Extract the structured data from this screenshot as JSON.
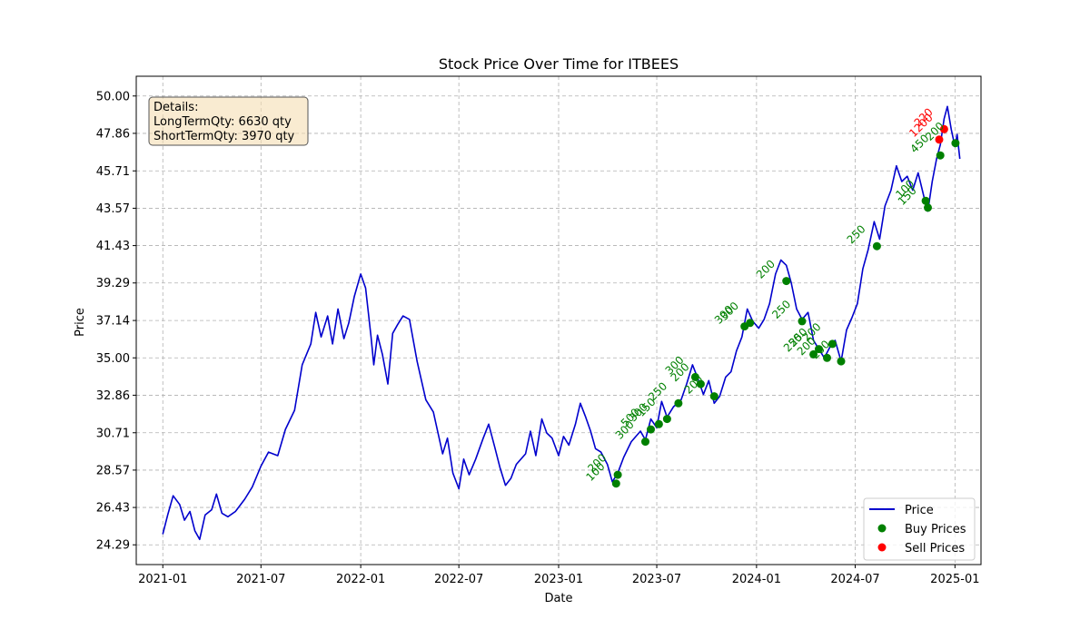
{
  "chart_data": {
    "type": "line",
    "title": "Stock Price Over Time for ITBEES",
    "xlabel": "Date",
    "ylabel": "Price",
    "ylim": [
      24.29,
      50.0
    ],
    "xlim": [
      "2020-11-13",
      "2025-02-18"
    ],
    "grid": true,
    "legend_placement": "lower-right",
    "x_ticks": [
      "2021-01",
      "2021-07",
      "2022-01",
      "2022-07",
      "2023-01",
      "2023-07",
      "2024-01",
      "2024-07",
      "2025-01"
    ],
    "y_ticks": [
      "24.29",
      "26.43",
      "28.57",
      "30.71",
      "32.86",
      "35.00",
      "37.14",
      "39.29",
      "41.43",
      "43.57",
      "45.71",
      "47.86",
      "50.00"
    ],
    "colors": {
      "price": "#0000cd",
      "buy": "#008000",
      "sell": "#ff0000"
    },
    "details_box": {
      "heading": "Details:",
      "long_term": "LongTermQty: 6630 qty",
      "short_term": "ShortTermQty: 3970 qty"
    },
    "series": [
      {
        "name": "Price",
        "points": [
          [
            "2021-01-01",
            24.9
          ],
          [
            "2021-01-10",
            26.0
          ],
          [
            "2021-01-20",
            27.1
          ],
          [
            "2021-02-01",
            26.6
          ],
          [
            "2021-02-10",
            25.7
          ],
          [
            "2021-02-20",
            26.2
          ],
          [
            "2021-03-01",
            25.1
          ],
          [
            "2021-03-10",
            24.6
          ],
          [
            "2021-03-20",
            26.0
          ],
          [
            "2021-04-01",
            26.3
          ],
          [
            "2021-04-10",
            27.2
          ],
          [
            "2021-04-20",
            26.1
          ],
          [
            "2021-05-01",
            25.9
          ],
          [
            "2021-05-15",
            26.2
          ],
          [
            "2021-06-01",
            26.9
          ],
          [
            "2021-06-15",
            27.6
          ],
          [
            "2021-07-01",
            28.8
          ],
          [
            "2021-07-15",
            29.6
          ],
          [
            "2021-08-01",
            29.4
          ],
          [
            "2021-08-15",
            30.9
          ],
          [
            "2021-09-01",
            32.0
          ],
          [
            "2021-09-15",
            34.6
          ],
          [
            "2021-10-01",
            35.8
          ],
          [
            "2021-10-10",
            37.6
          ],
          [
            "2021-10-20",
            36.2
          ],
          [
            "2021-11-01",
            37.4
          ],
          [
            "2021-11-10",
            35.8
          ],
          [
            "2021-11-20",
            37.8
          ],
          [
            "2021-12-01",
            36.1
          ],
          [
            "2021-12-10",
            37.0
          ],
          [
            "2021-12-20",
            38.5
          ],
          [
            "2022-01-01",
            39.8
          ],
          [
            "2022-01-10",
            39.0
          ],
          [
            "2022-01-20",
            36.2
          ],
          [
            "2022-01-25",
            34.6
          ],
          [
            "2022-02-01",
            36.3
          ],
          [
            "2022-02-10",
            35.2
          ],
          [
            "2022-02-20",
            33.5
          ],
          [
            "2022-03-01",
            36.4
          ],
          [
            "2022-03-10",
            36.9
          ],
          [
            "2022-03-20",
            37.4
          ],
          [
            "2022-04-01",
            37.2
          ],
          [
            "2022-04-15",
            34.8
          ],
          [
            "2022-05-01",
            32.6
          ],
          [
            "2022-05-15",
            31.9
          ],
          [
            "2022-06-01",
            29.5
          ],
          [
            "2022-06-10",
            30.4
          ],
          [
            "2022-06-20",
            28.4
          ],
          [
            "2022-07-01",
            27.5
          ],
          [
            "2022-07-10",
            29.2
          ],
          [
            "2022-07-20",
            28.3
          ],
          [
            "2022-08-01",
            29.2
          ],
          [
            "2022-08-15",
            30.4
          ],
          [
            "2022-08-25",
            31.2
          ],
          [
            "2022-09-05",
            29.9
          ],
          [
            "2022-09-15",
            28.7
          ],
          [
            "2022-09-25",
            27.7
          ],
          [
            "2022-10-05",
            28.1
          ],
          [
            "2022-10-15",
            28.9
          ],
          [
            "2022-11-01",
            29.5
          ],
          [
            "2022-11-10",
            30.8
          ],
          [
            "2022-11-20",
            29.4
          ],
          [
            "2022-12-01",
            31.5
          ],
          [
            "2022-12-10",
            30.7
          ],
          [
            "2022-12-20",
            30.4
          ],
          [
            "2023-01-01",
            29.4
          ],
          [
            "2023-01-10",
            30.5
          ],
          [
            "2023-01-20",
            30.0
          ],
          [
            "2023-02-01",
            31.2
          ],
          [
            "2023-02-10",
            32.4
          ],
          [
            "2023-02-20",
            31.6
          ],
          [
            "2023-03-01",
            30.8
          ],
          [
            "2023-03-10",
            29.8
          ],
          [
            "2023-03-20",
            29.6
          ],
          [
            "2023-04-01",
            28.9
          ],
          [
            "2023-04-10",
            27.9
          ],
          [
            "2023-04-20",
            28.4
          ],
          [
            "2023-05-01",
            29.3
          ],
          [
            "2023-05-15",
            30.2
          ],
          [
            "2023-06-01",
            30.8
          ],
          [
            "2023-06-10",
            30.3
          ],
          [
            "2023-06-20",
            31.5
          ],
          [
            "2023-07-01",
            31.0
          ],
          [
            "2023-07-10",
            32.5
          ],
          [
            "2023-07-20",
            31.6
          ],
          [
            "2023-08-01",
            32.2
          ],
          [
            "2023-08-15",
            32.6
          ],
          [
            "2023-08-25",
            33.5
          ],
          [
            "2023-09-05",
            34.6
          ],
          [
            "2023-09-15",
            33.8
          ],
          [
            "2023-09-25",
            32.9
          ],
          [
            "2023-10-05",
            33.7
          ],
          [
            "2023-10-15",
            32.4
          ],
          [
            "2023-10-25",
            32.8
          ],
          [
            "2023-11-05",
            33.9
          ],
          [
            "2023-11-15",
            34.2
          ],
          [
            "2023-11-25",
            35.4
          ],
          [
            "2023-12-05",
            36.2
          ],
          [
            "2023-12-15",
            37.8
          ],
          [
            "2023-12-25",
            37.1
          ],
          [
            "2024-01-05",
            36.7
          ],
          [
            "2024-01-15",
            37.2
          ],
          [
            "2024-01-25",
            38.1
          ],
          [
            "2024-02-05",
            39.8
          ],
          [
            "2024-02-15",
            40.6
          ],
          [
            "2024-02-25",
            40.3
          ],
          [
            "2024-03-05",
            39.3
          ],
          [
            "2024-03-15",
            37.8
          ],
          [
            "2024-03-25",
            37.2
          ],
          [
            "2024-04-05",
            37.6
          ],
          [
            "2024-04-15",
            36.0
          ],
          [
            "2024-04-25",
            35.5
          ],
          [
            "2024-05-05",
            35.0
          ],
          [
            "2024-05-15",
            35.6
          ],
          [
            "2024-05-25",
            36.0
          ],
          [
            "2024-06-05",
            34.8
          ],
          [
            "2024-06-15",
            36.6
          ],
          [
            "2024-06-25",
            37.3
          ],
          [
            "2024-07-05",
            38.1
          ],
          [
            "2024-07-15",
            40.1
          ],
          [
            "2024-07-25",
            41.2
          ],
          [
            "2024-08-05",
            42.8
          ],
          [
            "2024-08-15",
            41.8
          ],
          [
            "2024-08-25",
            43.7
          ],
          [
            "2024-09-05",
            44.6
          ],
          [
            "2024-09-15",
            46.0
          ],
          [
            "2024-09-25",
            45.1
          ],
          [
            "2024-10-05",
            45.4
          ],
          [
            "2024-10-15",
            44.6
          ],
          [
            "2024-10-25",
            45.6
          ],
          [
            "2024-11-05",
            44.2
          ],
          [
            "2024-11-12",
            43.4
          ],
          [
            "2024-11-20",
            45.1
          ],
          [
            "2024-11-28",
            46.4
          ],
          [
            "2024-12-05",
            47.2
          ],
          [
            "2024-12-12",
            48.7
          ],
          [
            "2024-12-18",
            49.4
          ],
          [
            "2024-12-25",
            48.1
          ],
          [
            "2025-01-01",
            47.1
          ],
          [
            "2025-01-05",
            47.8
          ],
          [
            "2025-01-10",
            46.4
          ]
        ]
      },
      {
        "name": "Buy Prices",
        "points": [
          [
            "2023-04-17",
            27.8,
            "100"
          ],
          [
            "2023-04-20",
            28.3,
            "200"
          ],
          [
            "2023-06-10",
            30.2,
            "300"
          ],
          [
            "2023-06-20",
            30.9,
            "500"
          ],
          [
            "2023-07-05",
            31.2,
            "300"
          ],
          [
            "2023-07-20",
            31.5,
            "150"
          ],
          [
            "2023-08-10",
            32.4,
            "250"
          ],
          [
            "2023-09-10",
            33.9,
            "300"
          ],
          [
            "2023-09-20",
            33.5,
            "200"
          ],
          [
            "2023-10-15",
            32.8,
            "200"
          ],
          [
            "2023-12-10",
            36.8,
            "300"
          ],
          [
            "2023-12-20",
            37.0,
            "300"
          ],
          [
            "2024-02-25",
            39.4,
            "200"
          ],
          [
            "2024-03-25",
            37.1,
            "250"
          ],
          [
            "2024-04-15",
            35.2,
            "250"
          ],
          [
            "2024-04-25",
            35.5,
            "250"
          ],
          [
            "2024-05-10",
            35.0,
            "200"
          ],
          [
            "2024-05-20",
            35.8,
            "200"
          ],
          [
            "2024-06-05",
            34.8,
            "200"
          ],
          [
            "2024-08-10",
            41.4,
            "250"
          ],
          [
            "2024-11-08",
            44.0,
            "100"
          ],
          [
            "2024-11-12",
            43.6,
            "150"
          ],
          [
            "2024-12-05",
            46.6,
            "450"
          ],
          [
            "2025-01-02",
            47.3,
            "200"
          ]
        ]
      },
      {
        "name": "Sell Prices",
        "points": [
          [
            "2024-12-03",
            47.5,
            "1200"
          ],
          [
            "2024-12-12",
            48.1,
            "220"
          ]
        ]
      }
    ]
  }
}
